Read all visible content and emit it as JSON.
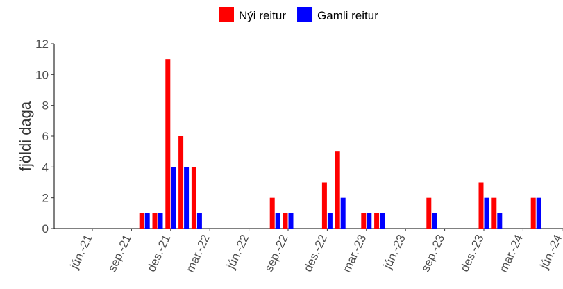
{
  "chart_data": {
    "type": "bar",
    "y_label": "fjöldi daga",
    "categories": [
      "jún.-21",
      null,
      null,
      "sep.-21",
      null,
      null,
      "des.-21",
      null,
      null,
      "mar.-22",
      null,
      null,
      "jún.-22",
      null,
      null,
      "sep.-22",
      null,
      null,
      "des.-22",
      null,
      null,
      "mar.-23",
      null,
      null,
      "jún.-23",
      null,
      null,
      "sep.-23",
      null,
      null,
      "des.-23",
      null,
      null,
      "mar.-24",
      null,
      null,
      "jún.-24"
    ],
    "series": [
      {
        "name": "Nýi reitur",
        "color": "#ff0000",
        "values": [
          0,
          0,
          0,
          0,
          1,
          1,
          11,
          6,
          4,
          0,
          0,
          0,
          0,
          0,
          2,
          1,
          0,
          0,
          3,
          5,
          0,
          1,
          1,
          0,
          0,
          0,
          2,
          0,
          0,
          0,
          3,
          2,
          0,
          0,
          2,
          0,
          0
        ]
      },
      {
        "name": "Gamli reitur",
        "color": "#0000ff",
        "values": [
          0,
          0,
          0,
          0,
          1,
          1,
          4,
          4,
          1,
          0,
          0,
          0,
          0,
          0,
          1,
          1,
          0,
          0,
          1,
          2,
          0,
          1,
          1,
          0,
          0,
          0,
          1,
          0,
          0,
          0,
          2,
          1,
          0,
          0,
          2,
          0,
          0
        ]
      }
    ],
    "ylim": [
      0,
      12
    ],
    "yticks": [
      0,
      2,
      4,
      6,
      8,
      10,
      12
    ],
    "legend": "top"
  }
}
